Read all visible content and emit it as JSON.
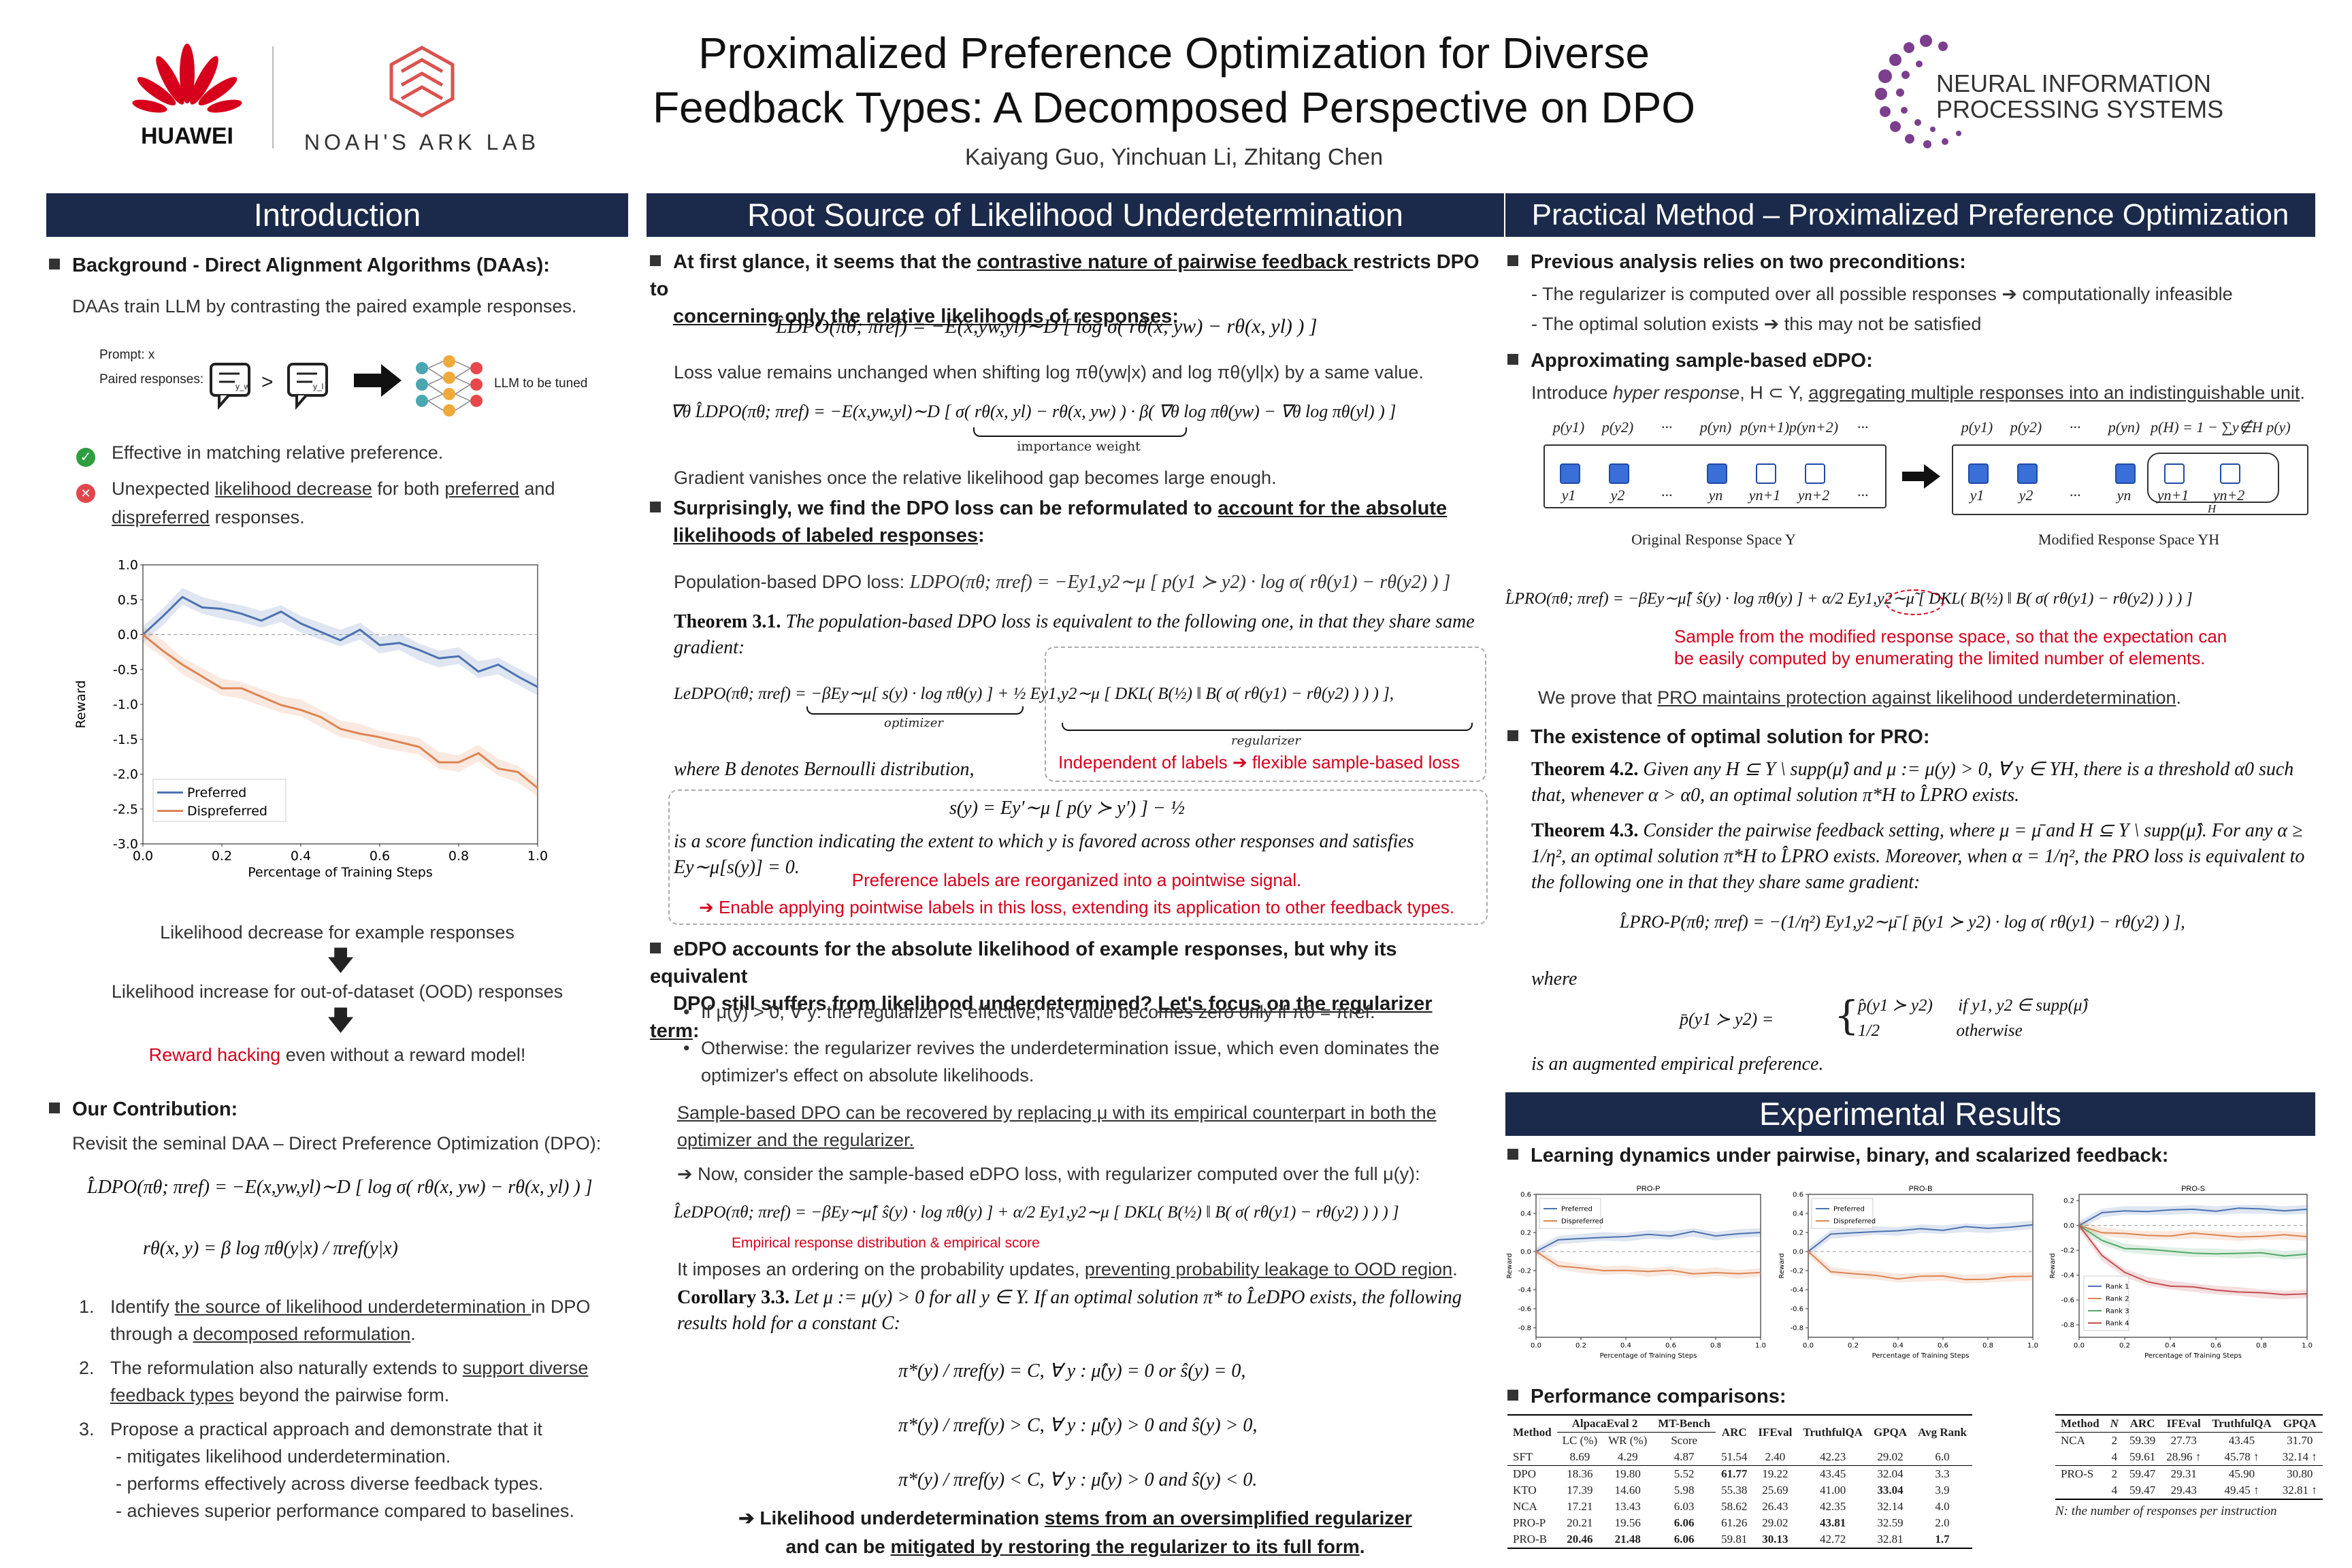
{
  "header": {
    "title_line1": "Proximalized Preference Optimization for Diverse",
    "title_line2": "Feedback Types: A Decomposed Perspective on DPO",
    "authors": "Kaiyang Guo, Yinchuan Li, Zhitang Chen",
    "logo_huawei": "HUAWEI",
    "logo_noah": "NOAH'S ARK LAB",
    "logo_neurips_1": "NEURAL INFORMATION",
    "logo_neurips_2": "PROCESSING SYSTEMS",
    "colors": {
      "navy": "#1b2a4a",
      "red": "#d6001c",
      "purple": "#7b3f8e"
    }
  },
  "intro": {
    "heading": "Introduction",
    "bg_title": "Background - Direct Alignment Algorithms (DAAs):",
    "bg_text": "DAAs train LLM by contrasting the paired example responses.",
    "fig_prompt": "Prompt: x",
    "fig_paired": "Paired responses:",
    "fig_llm": "LLM to be tuned",
    "fig_yw": "y_w",
    "fig_yl": "y_l",
    "fig_gt": ">",
    "check_text": "Effective in matching relative preference.",
    "cross_a": "Unexpected ",
    "cross_b": "likelihood decrease",
    "cross_c": " for both ",
    "cross_d": "preferred",
    "cross_e": " and",
    "cross_f": "dispreferred",
    "cross_g": " responses.",
    "flow1": "Likelihood decrease for example responses",
    "flow2": "Likelihood increase for out-of-dataset (OOD) responses",
    "flow3a": "Reward hacking",
    "flow3b": " even without a reward model!",
    "contrib_title": "Our Contribution:",
    "contrib_text": "Revisit the seminal DAA – Direct Preference Optimization (DPO):",
    "eq_dpo": "L̂DPO(πθ; πref) = −E(x,yw,yl)∼D [ log σ( rθ(x, yw) − rθ(x, yl) ) ]",
    "eq_r": "rθ(x, y) = β log πθ(y|x) / πref(y|x)",
    "item1_num": "1.",
    "item1a": "Identify ",
    "item1b": "the source of likelihood underdetermination ",
    "item1c": "in DPO",
    "item1d": "through a ",
    "item1e": "decomposed reformulation",
    "item1f": ".",
    "item2_num": "2.",
    "item2a": "The reformulation also naturally extends to ",
    "item2b": "support diverse",
    "item2c": "feedback types",
    "item2d": " beyond the pairwise form.",
    "item3_num": "3.",
    "item3a": "Propose a practical approach and demonstrate that it",
    "item3b": "- mitigates likelihood underdetermination.",
    "item3c": "- performs effectively across diverse feedback types.",
    "item3d": "- achieves superior performance compared to baselines."
  },
  "chart_data": [
    {
      "type": "line",
      "title": "",
      "xlabel": "Percentage of Training Steps",
      "ylabel": "Reward",
      "xlim": [
        0.0,
        1.0
      ],
      "ylim": [
        -3.0,
        1.0
      ],
      "xticks": [
        "0.0",
        "0.2",
        "0.4",
        "0.6",
        "0.8",
        "1.0"
      ],
      "yticks": [
        "1.0",
        "0.5",
        "0.0",
        "-0.5",
        "-1.0",
        "-1.5",
        "-2.0",
        "-2.5",
        "-3.0"
      ],
      "legend_position": "lower-left",
      "x": [
        0.0,
        0.05,
        0.1,
        0.15,
        0.2,
        0.25,
        0.3,
        0.35,
        0.4,
        0.45,
        0.5,
        0.55,
        0.6,
        0.65,
        0.7,
        0.75,
        0.8,
        0.85,
        0.9,
        0.95,
        1.0
      ],
      "series": [
        {
          "name": "Preferred",
          "color": "#4c72b0",
          "values": [
            0.0,
            0.25,
            0.55,
            0.42,
            0.35,
            0.3,
            0.22,
            0.3,
            0.15,
            0.05,
            -0.05,
            0.05,
            -0.15,
            -0.1,
            -0.25,
            -0.35,
            -0.3,
            -0.5,
            -0.45,
            -0.6,
            -0.75
          ]
        },
        {
          "name": "Dispreferred",
          "color": "#dd8452",
          "values": [
            0.0,
            -0.2,
            -0.45,
            -0.6,
            -0.75,
            -0.8,
            -0.9,
            -1.0,
            -1.05,
            -1.2,
            -1.35,
            -1.4,
            -1.5,
            -1.55,
            -1.6,
            -1.8,
            -1.85,
            -1.7,
            -1.9,
            -2.0,
            -2.2
          ]
        }
      ]
    },
    {
      "type": "line",
      "title": "PRO-P",
      "xlabel": "Percentage of Training Steps",
      "ylabel": "Reward",
      "xlim": [
        0.0,
        1.0
      ],
      "ylim": [
        -0.9,
        0.6
      ],
      "xticks": [
        "0.0",
        "0.2",
        "0.4",
        "0.6",
        "0.8",
        "1.0"
      ],
      "yticks": [
        "0.6",
        "0.4",
        "0.2",
        "0.0",
        "-0.2",
        "-0.4",
        "-0.6",
        "-0.8"
      ],
      "x": [
        0.0,
        0.1,
        0.2,
        0.3,
        0.4,
        0.5,
        0.6,
        0.7,
        0.8,
        0.9,
        1.0
      ],
      "series": [
        {
          "name": "Preferred",
          "color": "#4c72b0",
          "values": [
            0.0,
            0.12,
            0.14,
            0.16,
            0.15,
            0.18,
            0.17,
            0.2,
            0.16,
            0.19,
            0.2
          ]
        },
        {
          "name": "Dispreferred",
          "color": "#dd8452",
          "values": [
            0.0,
            -0.14,
            -0.18,
            -0.2,
            -0.19,
            -0.22,
            -0.2,
            -0.23,
            -0.21,
            -0.24,
            -0.22
          ]
        }
      ]
    },
    {
      "type": "line",
      "title": "PRO-B",
      "xlabel": "Percentage of Training Steps",
      "ylabel": "Reward",
      "xlim": [
        0.0,
        1.0
      ],
      "ylim": [
        -0.9,
        0.6
      ],
      "xticks": [
        "0.0",
        "0.2",
        "0.4",
        "0.6",
        "0.8",
        "1.0"
      ],
      "yticks": [
        "0.6",
        "0.4",
        "0.2",
        "0.0",
        "-0.2",
        "-0.4",
        "-0.6",
        "-0.8"
      ],
      "x": [
        0.0,
        0.1,
        0.2,
        0.3,
        0.4,
        0.5,
        0.6,
        0.7,
        0.8,
        0.9,
        1.0
      ],
      "series": [
        {
          "name": "Preferred",
          "color": "#4c72b0",
          "values": [
            0.0,
            0.18,
            0.2,
            0.22,
            0.21,
            0.24,
            0.23,
            0.25,
            0.24,
            0.26,
            0.28
          ]
        },
        {
          "name": "Dispreferred",
          "color": "#dd8452",
          "values": [
            0.0,
            -0.2,
            -0.24,
            -0.25,
            -0.28,
            -0.27,
            -0.26,
            -0.29,
            -0.28,
            -0.27,
            -0.26
          ]
        }
      ]
    },
    {
      "type": "line",
      "title": "PRO-S",
      "xlabel": "Percentage of Training Steps",
      "ylabel": "Reward",
      "xlim": [
        0.0,
        1.0
      ],
      "ylim": [
        -0.9,
        0.25
      ],
      "xticks": [
        "0.0",
        "0.2",
        "0.4",
        "0.6",
        "0.8",
        "1.0"
      ],
      "yticks": [
        "0.2",
        "0.0",
        "-0.2",
        "-0.4",
        "-0.6",
        "-0.8"
      ],
      "x": [
        0.0,
        0.1,
        0.2,
        0.3,
        0.4,
        0.5,
        0.6,
        0.7,
        0.8,
        0.9,
        1.0
      ],
      "series": [
        {
          "name": "Rank 1",
          "color": "#4c72b0",
          "values": [
            0.0,
            0.1,
            0.12,
            0.12,
            0.12,
            0.13,
            0.12,
            0.13,
            0.13,
            0.12,
            0.13
          ]
        },
        {
          "name": "Rank 2",
          "color": "#dd8452",
          "values": [
            0.0,
            -0.05,
            -0.07,
            -0.08,
            -0.08,
            -0.07,
            -0.08,
            -0.09,
            -0.08,
            -0.08,
            -0.09
          ]
        },
        {
          "name": "Rank 3",
          "color": "#55a868",
          "values": [
            0.0,
            -0.12,
            -0.18,
            -0.2,
            -0.21,
            -0.22,
            -0.22,
            -0.23,
            -0.22,
            -0.24,
            -0.23
          ]
        },
        {
          "name": "Rank 4",
          "color": "#c44e52",
          "values": [
            0.0,
            -0.25,
            -0.38,
            -0.45,
            -0.48,
            -0.5,
            -0.52,
            -0.53,
            -0.55,
            -0.56,
            -0.55
          ]
        }
      ]
    }
  ],
  "root": {
    "heading": "Root Source of Likelihood Underdetermination",
    "p1a": "At first glance, it seems that the ",
    "p1b": "contrastive nature of pairwise feedback ",
    "p1c": "restricts DPO to",
    "p1d": "concerning only the relative likelihoods of responses",
    "p1e": ":",
    "eq1": "L̂DPO(πθ; πref) = −E(x,yw,yl)∼D [ log σ( rθ(x, yw) − rθ(x, yl) ) ]",
    "loss_text": "Loss value remains unchanged when shifting log πθ(yw|x) and log πθ(yl|x) by a same value.",
    "eq_grad": "∇θ L̂DPO(πθ; πref) = −E(x,yw,yl)∼D [ σ( rθ(x, yl) − rθ(x, yw) ) · β( ∇θ log πθ(yw) − ∇θ log πθ(yl) ) ]",
    "imp_weight": "importance weight",
    "grad_text": "Gradient vanishes once the relative likelihood gap becomes large enough.",
    "p2a": "Surprisingly, we find the DPO loss can be reformulated to ",
    "p2b": "account for the absolute",
    "p2c": "likelihoods of labeled responses",
    "p2d": ":",
    "pop_label": "Population-based DPO loss: ",
    "pop_eq": "LDPO(πθ; πref) = −Ey1,y2∼μ [ p(y1 ≻ y2) · log σ( rθ(y1) − rθ(y2) ) ]",
    "thm31_label": "Theorem 3.1.",
    "thm31_text": " The population-based DPO loss is equivalent to the following one, in that they share same gradient:",
    "edpo_eq": "LeDPO(πθ; πref) = −βEy∼μ[ s(y) · log πθ(y) ] + ½ Ey1,y2∼μ [ DKL( B(½) ‖ B( σ( rθ(y1) − rθ(y2) ) ) ) ],",
    "optimizer": "optimizer",
    "regularizer": "regularizer",
    "where_b": "where B denotes Bernoulli distribution,",
    "indep_note": "Independent of labels ➔ flexible sample-based loss",
    "s_eq": "s(y) = Ey′∼μ [ p(y ≻ y′) ] − ½",
    "score_text": "is a score function indicating the extent to which y is favored across other responses and satisfies Ey∼μ[s(y)] = 0.",
    "pref_note1": "Preference labels are reorganized into a pointwise signal.",
    "pref_note2": "➔ Enable applying pointwise labels in this loss, extending its application to other feedback types.",
    "p3a": "eDPO accounts for the absolute likelihood of example responses, but why its equivalent",
    "p3b": "DPO still suffers from likelihood underdetermined? ",
    "p3c": "Let's focus on the regularizer term",
    "p3d": ":",
    "sub1": "If μ(y) > 0, ∀ y: the regularizer is effective; its value becomes zero only if πθ = πref.",
    "sub2a": "Otherwise: the regularizer revives the underdetermination issue, which even dominates the",
    "sub2b": "optimizer's effect on absolute likelihoods.",
    "samp_a": "Sample-based DPO can be recovered by replacing μ with its empirical counterpart in both the",
    "samp_b": "optimizer and the regularizer.",
    "now_text": "➔ Now, consider the sample-based eDPO loss, with regularizer computed over the full μ(y):",
    "samp_eq": "L̂eDPO(πθ; πref) = −βEy∼μ̂[ ŝ(y) · log πθ(y) ] + α/2 Ey1,y2∼μ [ DKL( B(½) ‖ B( σ( rθ(y1) − rθ(y2) ) ) ) ]",
    "emp_note": "Empirical response distribution & empirical score",
    "impose_a": "It imposes an ordering on the probability updates, ",
    "impose_b": "preventing probability leakage to OOD region",
    "impose_c": ".",
    "cor_label": "Corollary 3.3.",
    "cor_text": " Let μ := μ(y) > 0 for all y ∈ Y. If an optimal solution π* to L̂eDPO exists, the following results hold for a constant C:",
    "case1": "π*(y) / πref(y) = C,   ∀ y : μ̂(y) = 0 or ŝ(y) = 0,",
    "case2": "π*(y) / πref(y) > C,   ∀ y : μ̂(y) > 0 and ŝ(y) > 0,",
    "case3": "π*(y) / πref(y) < C,   ∀ y : μ̂(y) > 0 and ŝ(y) < 0.",
    "final_a": "➔ Likelihood underdetermination ",
    "final_b": "stems from an oversimplified regularizer",
    "final_c": "and can be ",
    "final_d": "mitigated by restoring the regularizer to its full form",
    "final_e": "."
  },
  "method": {
    "heading": "Practical Method – Proximalized Preference Optimization",
    "b1": "Previous analysis relies on two preconditions:",
    "b1a": "- The regularizer is computed over all possible responses ➔ computationally infeasible",
    "b1b": "- The optimal solution exists ➔ this may not be satisfied",
    "b2": "Approximating sample-based eDPO:",
    "intro_a": "Introduce ",
    "intro_b": "hyper response",
    "intro_c": ", H ⊂ Y, ",
    "intro_d": "aggregating multiple responses into an indistinguishable unit",
    "intro_e": ".",
    "ps_left": [
      "p(y1)",
      "p(y2)",
      "···",
      "p(yn)",
      "p(yn+1)",
      "p(yn+2)",
      "···"
    ],
    "ys_left": [
      "y1",
      "y2",
      "···",
      "yn",
      "yn+1",
      "yn+2",
      "···"
    ],
    "ps_right": [
      "p(y1)",
      "p(y2)",
      "···",
      "p(yn)",
      "p(H) = 1 − ∑y∉H p(y)"
    ],
    "ys_right": [
      "y1",
      "y2",
      "···",
      "yn",
      "yn+1",
      "yn+2"
    ],
    "h_label": "H",
    "orig_space": "Original Response Space Y",
    "mod_space": "Modified Response Space YH",
    "pro_eq": "L̂PRO(πθ; πref) = −βEy∼μ̂[ ŝ(y) · log πθ(y) ] + α/2 Ey1,y2∼μ̃ [ DKL( B(½) ‖ B( σ( rθ(y1) − rθ(y2) ) ) ) ]",
    "sample_note1": "Sample from the modified response space, so that the expectation can",
    "sample_note2": "be easily computed by enumerating the limited number of elements.",
    "prove_a": "We prove that ",
    "prove_b": "PRO maintains protection against likelihood underdetermination",
    "prove_c": ".",
    "b3": "The existence of optimal solution for PRO:",
    "thm42_label": "Theorem 4.2.",
    "thm42_text": " Given any H ⊆ Y \\ supp(μ̂) and μ := μ(y) > 0, ∀ y ∈ YH, there is a threshold α0 such that, whenever α > α0, an optimal solution π*H to L̂PRO exists.",
    "thm43_label": "Theorem 4.3.",
    "thm43_text": " Consider the pairwise feedback setting, where μ = μ̄ and H ⊆ Y \\ supp(μ̂). For any α ≥ 1/η², an optimal solution π*H to L̂PRO exists. Moreover, when α = 1/η², the PRO loss is equivalent to the following one in that they share same gradient:",
    "propp_eq": "L̂PRO-P(πθ; πref) = −(1/η²) Ey1,y2∼μ̄ [ p̄(y1 ≻ y2) · log σ( rθ(y1) − rθ(y2) ) ],",
    "where": "where",
    "pbar_lhs": "p̄(y1 ≻ y2) =",
    "pbar_c1": "p̂(y1 ≻ y2)      if y1, y2 ∈ supp(μ̂)",
    "pbar_c2": "1/2                  otherwise",
    "aug_text": "is an augmented empirical preference."
  },
  "results": {
    "heading": "Experimental Results",
    "b1": "Learning dynamics under pairwise, binary, and scalarized feedback:",
    "b2": "Performance comparisons:",
    "table1": {
      "h_method": "Method",
      "h_alpaca": "AlpacaEval 2",
      "h_mt": "MT-Bench",
      "h_arc": "ARC",
      "h_ifeval": "IFEval",
      "h_truthful": "TruthfulQA",
      "h_gpqa": "GPQA",
      "h_avg": "Avg Rank",
      "h_lc": "LC (%)",
      "h_wr": "WR (%)",
      "h_score": "Score",
      "rows": [
        [
          "SFT",
          "8.69",
          "4.29",
          "4.87",
          "51.54",
          "2.40",
          "42.23",
          "29.02",
          "6.0"
        ],
        [
          "DPO",
          "18.36",
          "19.80",
          "5.52",
          "61.77",
          "19.22",
          "43.45",
          "32.04",
          "3.3"
        ],
        [
          "KTO",
          "17.39",
          "14.60",
          "5.98",
          "55.38",
          "25.69",
          "41.00",
          "33.04",
          "3.9"
        ],
        [
          "NCA",
          "17.21",
          "13.43",
          "6.03",
          "58.62",
          "26.43",
          "42.35",
          "32.14",
          "4.0"
        ],
        [
          "PRO-P",
          "20.21",
          "19.56",
          "6.06",
          "61.26",
          "29.02",
          "43.81",
          "32.59",
          "2.0"
        ],
        [
          "PRO-B",
          "20.46",
          "21.48",
          "6.06",
          "59.81",
          "30.13",
          "42.72",
          "32.81",
          "1.7"
        ]
      ]
    },
    "table2": {
      "h_method": "Method",
      "h_n": "N",
      "h_arc": "ARC",
      "h_ifeval": "IFEval",
      "h_truthful": "TruthfulQA",
      "h_gpqa": "GPQA",
      "rows": [
        [
          "NCA",
          "2",
          "59.39",
          "27.73",
          "43.45",
          "31.70"
        ],
        [
          "",
          "4",
          "59.61",
          "28.96 ↑",
          "45.78 ↑",
          "32.14 ↑"
        ],
        [
          "PRO-S",
          "2",
          "59.47",
          "29.31",
          "45.90",
          "30.80"
        ],
        [
          "",
          "4",
          "59.47",
          "29.43",
          "49.45 ↑",
          "32.81 ↑"
        ]
      ],
      "note": "N: the number of responses per instruction"
    }
  }
}
